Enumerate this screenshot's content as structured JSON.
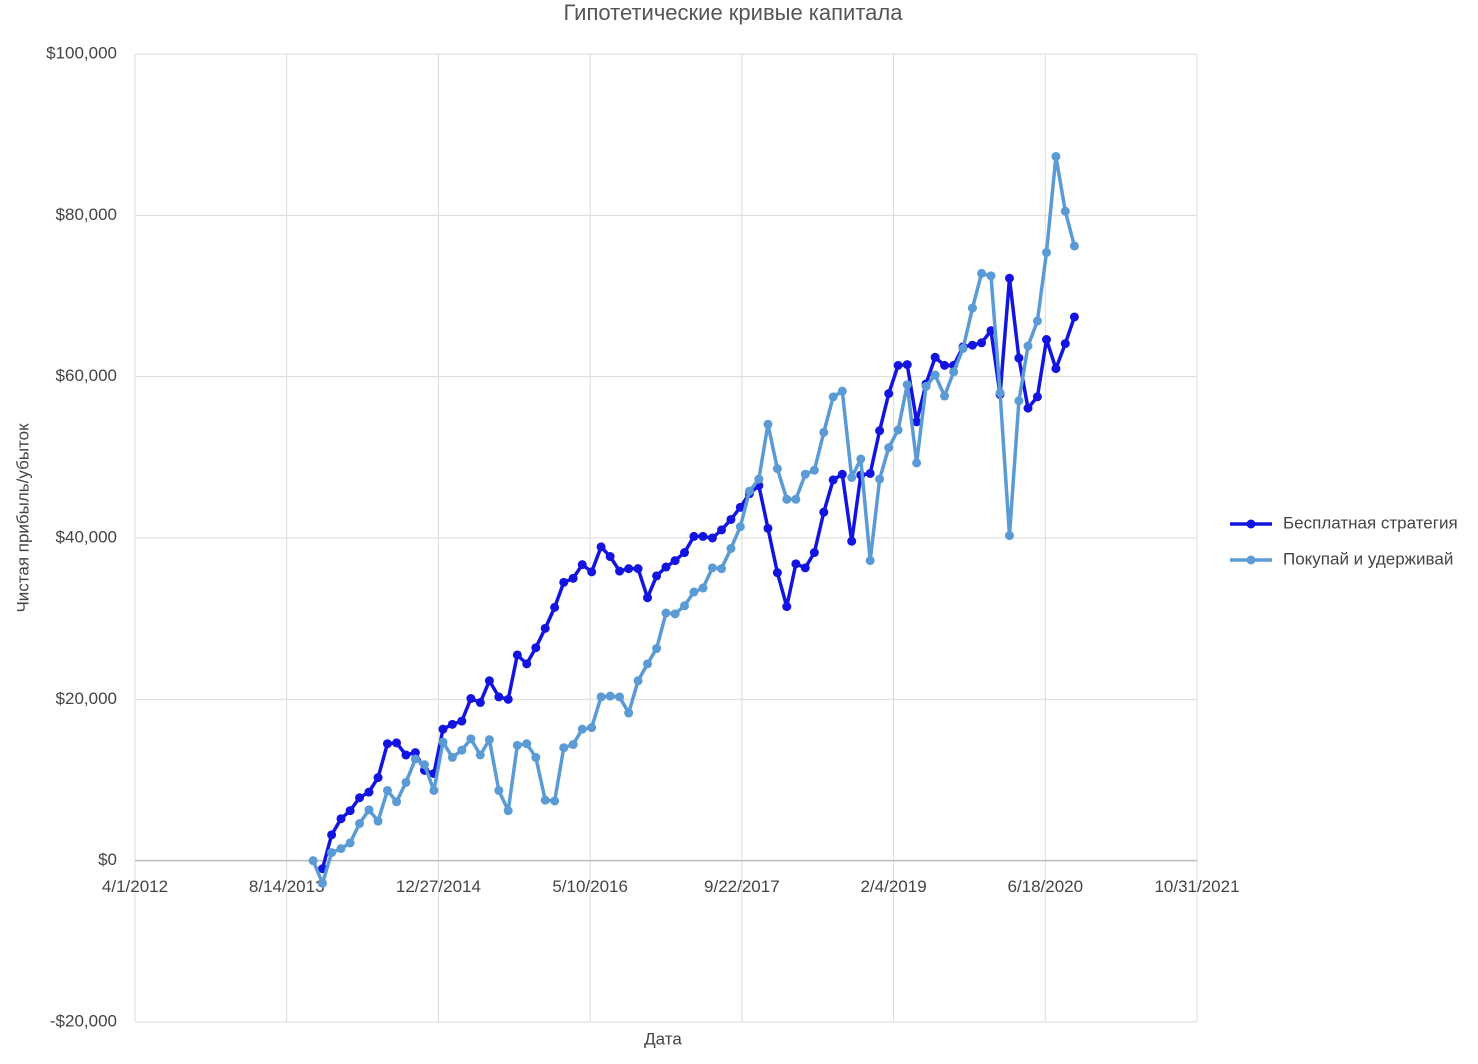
{
  "chart_data": {
    "type": "line",
    "title": "Гипотетические кривые капитала",
    "x_label": "Дата",
    "y_label": "Чистая прибыль/убыток",
    "x": [
      41587,
      41618,
      41648,
      41679,
      41709,
      41740,
      41771,
      41801,
      41832,
      41862,
      41893,
      41924,
      41954,
      41985,
      42015,
      42046,
      42077,
      42107,
      42138,
      42168,
      42199,
      42230,
      42260,
      42291,
      42321,
      42352,
      42383,
      42413,
      42444,
      42474,
      42505,
      42536,
      42566,
      42597,
      42627,
      42658,
      42689,
      42719,
      42750,
      42780,
      42811,
      42842,
      42872,
      42903,
      42933,
      42964,
      42995,
      43025,
      43056,
      43086,
      43117,
      43148,
      43178,
      43209,
      43239,
      43270,
      43301,
      43331,
      43362,
      43392,
      43423,
      43454,
      43484,
      43515,
      43545,
      43576,
      43607,
      43637,
      43668,
      43698,
      43729,
      43760,
      43790,
      43821,
      43851,
      43882,
      43913,
      43943,
      43974,
      44004,
      44035,
      44066,
      44096
    ],
    "series": [
      {
        "name": "Бесплатная стратегия",
        "color": "#1414e0",
        "values": [
          null,
          -1000,
          3200,
          5200,
          6200,
          7800,
          8500,
          10300,
          14500,
          14600,
          13100,
          13400,
          11200,
          10800,
          16300,
          16900,
          17300,
          20100,
          19600,
          22300,
          20300,
          20000,
          25500,
          24400,
          26400,
          28800,
          31400,
          34500,
          35000,
          36700,
          35800,
          38900,
          37700,
          35900,
          36200,
          36200,
          32600,
          35300,
          36400,
          37200,
          38200,
          40200,
          40200,
          40000,
          41000,
          42300,
          43800,
          45500,
          46500,
          41200,
          35700,
          31500,
          36800,
          36300,
          38200,
          43200,
          47200,
          47900,
          39600,
          47800,
          48000,
          53300,
          57900,
          61400,
          61500,
          54400,
          59100,
          62400,
          61400,
          61400,
          63700,
          63900,
          64200,
          65700,
          57800,
          72200,
          62300,
          56100,
          57500,
          64600,
          61000,
          64100,
          67400
        ]
      },
      {
        "name": "Покупай и удерживай",
        "color": "#5b9bd5",
        "values": [
          0,
          -2800,
          1000,
          1500,
          2200,
          4600,
          6300,
          4900,
          8700,
          7300,
          9700,
          12600,
          11900,
          8700,
          14700,
          12800,
          13700,
          15100,
          13100,
          15000,
          8700,
          6200,
          14300,
          14500,
          12800,
          7500,
          7400,
          14000,
          14400,
          16300,
          16500,
          20300,
          20400,
          20300,
          18300,
          22300,
          24400,
          26300,
          30700,
          30600,
          31600,
          33300,
          33800,
          36300,
          36200,
          38700,
          41400,
          45800,
          47300,
          54100,
          48600,
          44800,
          44800,
          47900,
          48400,
          53100,
          57500,
          58200,
          47500,
          49800,
          37200,
          47300,
          51200,
          53400,
          59000,
          49300,
          58800,
          60200,
          57600,
          60600,
          63500,
          68500,
          72800,
          72500,
          58000,
          40300,
          57000,
          63800,
          66900,
          75400,
          87300,
          80500,
          76200
        ]
      }
    ],
    "xlim": [
      41000,
      44500
    ],
    "xticks": [
      {
        "value": 41000,
        "label": "4/1/2012"
      },
      {
        "value": 41500,
        "label": "8/14/2013"
      },
      {
        "value": 42000,
        "label": "12/27/2014"
      },
      {
        "value": 42500,
        "label": "5/10/2016"
      },
      {
        "value": 43000,
        "label": "9/22/2017"
      },
      {
        "value": 43500,
        "label": "2/4/2019"
      },
      {
        "value": 44000,
        "label": "6/18/2020"
      },
      {
        "value": 44500,
        "label": "10/31/2021"
      }
    ],
    "ylim": [
      -20000,
      100000
    ],
    "yticks": [
      {
        "value": -20000,
        "label": "-$20,000"
      },
      {
        "value": 0,
        "label": "$0"
      },
      {
        "value": 20000,
        "label": "$20,000"
      },
      {
        "value": 40000,
        "label": "$40,000"
      },
      {
        "value": 60000,
        "label": "$60,000"
      },
      {
        "value": 80000,
        "label": "$80,000"
      },
      {
        "value": 100000,
        "label": "$100,000"
      }
    ],
    "grid": true,
    "legend": "right"
  }
}
